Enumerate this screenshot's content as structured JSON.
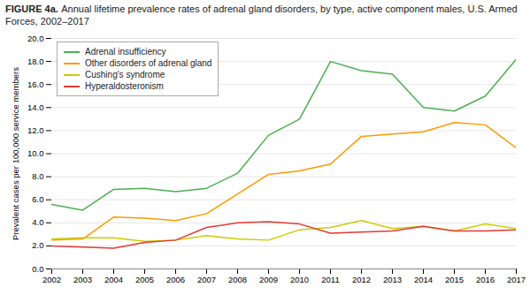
{
  "chart_data": {
    "type": "line",
    "title": "FIGURE 4a.",
    "subtitle": "Annual lifetime prevalence rates of adrenal gland disorders, by type, active component males, U.S. Armed Forces, 2002–2017",
    "x": [
      2002,
      2003,
      2004,
      2005,
      2006,
      2007,
      2008,
      2009,
      2010,
      2011,
      2012,
      2013,
      2014,
      2015,
      2016,
      2017
    ],
    "series": [
      {
        "name": "Adrenal insufficiency",
        "color": "#4caf50",
        "values": [
          5.6,
          5.1,
          6.9,
          7.0,
          6.7,
          7.0,
          8.3,
          11.6,
          13.0,
          18.0,
          17.2,
          16.9,
          14.0,
          13.7,
          15.0,
          18.2
        ]
      },
      {
        "name": "Other disorders of adrenal gland",
        "color": "#ff9800",
        "values": [
          2.5,
          2.6,
          4.5,
          4.4,
          4.2,
          4.8,
          6.5,
          8.2,
          8.5,
          9.1,
          11.5,
          11.7,
          11.9,
          12.7,
          12.5,
          10.5
        ]
      },
      {
        "name": "Cushing's syndrome",
        "color": "#cccc00",
        "values": [
          2.6,
          2.7,
          2.7,
          2.4,
          2.5,
          2.9,
          2.6,
          2.5,
          3.4,
          3.6,
          4.2,
          3.5,
          3.7,
          3.3,
          3.9,
          3.5
        ]
      },
      {
        "name": "Hyperaldosteronism",
        "color": "#e53935",
        "values": [
          2.0,
          1.9,
          1.8,
          2.3,
          2.5,
          3.6,
          4.0,
          4.1,
          3.9,
          3.1,
          3.2,
          3.3,
          3.7,
          3.3,
          3.3,
          3.4
        ]
      }
    ],
    "ylabel": "Prevalent cases per 100,000 service members",
    "xlim": [
      2002,
      2017
    ],
    "xticks": [
      2002,
      2003,
      2004,
      2005,
      2006,
      2007,
      2008,
      2009,
      2010,
      2011,
      2012,
      2013,
      2014,
      2015,
      2016,
      2017
    ],
    "ylim": [
      0,
      20
    ],
    "yticks": [
      {
        "value": 0,
        "label": "0.0"
      },
      {
        "value": 2,
        "label": "2.0"
      },
      {
        "value": 4,
        "label": "4.0"
      },
      {
        "value": 6,
        "label": "6.0"
      },
      {
        "value": 8,
        "label": "8.0"
      },
      {
        "value": 10,
        "label": "10.0"
      },
      {
        "value": 12,
        "label": "12.0"
      },
      {
        "value": 14,
        "label": "14.0"
      },
      {
        "value": 16,
        "label": "16.0"
      },
      {
        "value": 18,
        "label": "18.0"
      },
      {
        "value": 20,
        "label": "20.0"
      }
    ],
    "grid": true,
    "legend": "upper left"
  }
}
